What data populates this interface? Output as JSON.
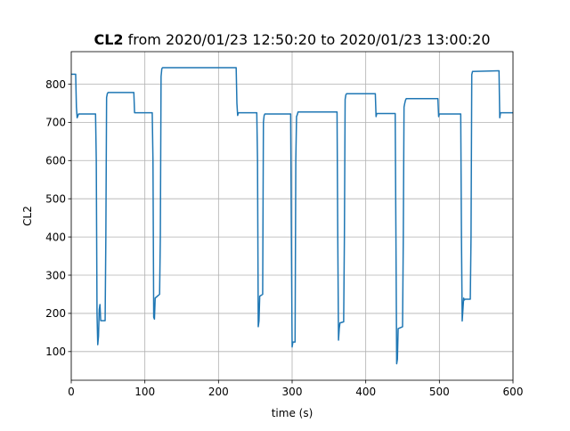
{
  "chart_data": {
    "type": "line",
    "title_bold": "CL2",
    "title_rest": " from 2020/01/23 12:50:20 to 2020/01/23 13:00:20",
    "xlabel": "time (s)",
    "ylabel": "CL2",
    "xlim": [
      0,
      600
    ],
    "ylim": [
      25,
      885
    ],
    "xticks": [
      0,
      100,
      200,
      300,
      400,
      500,
      600
    ],
    "yticks": [
      100,
      200,
      300,
      400,
      500,
      600,
      700,
      800
    ],
    "grid": true,
    "line_color": "#1f77b4",
    "series": [
      {
        "x": [
          0,
          6,
          7,
          8,
          10,
          33,
          34,
          35,
          36,
          37,
          38,
          39,
          40,
          46,
          47,
          48,
          49,
          50,
          85,
          86,
          110,
          111,
          112,
          113,
          114,
          120,
          121,
          122,
          123,
          124,
          224,
          225,
          226,
          227,
          252,
          253,
          254,
          255,
          256,
          260,
          261,
          262,
          263,
          298,
          299,
          300,
          301,
          304,
          305,
          306,
          307,
          308,
          361,
          362,
          363,
          364,
          365,
          370,
          371,
          372,
          373,
          374,
          413,
          414,
          415,
          416,
          440,
          441,
          442,
          443,
          444,
          450,
          451,
          452,
          453,
          454,
          455,
          498,
          499,
          500,
          501,
          529,
          530,
          531,
          532,
          533,
          534,
          535,
          542,
          543,
          544,
          545,
          580,
          581,
          582,
          583,
          600
        ],
        "y": [
          826,
          826,
          740,
          712,
          722,
          722,
          600,
          200,
          118,
          140,
          210,
          223,
          181,
          181,
          400,
          765,
          775,
          778,
          778,
          725,
          725,
          600,
          190,
          185,
          240,
          250,
          400,
          820,
          840,
          843,
          843,
          750,
          718,
          725,
          725,
          600,
          165,
          180,
          245,
          250,
          700,
          718,
          722,
          722,
          400,
          112,
          125,
          125,
          600,
          715,
          720,
          727,
          727,
          400,
          130,
          160,
          175,
          178,
          400,
          760,
          772,
          775,
          775,
          715,
          723,
          723,
          723,
          400,
          68,
          80,
          160,
          165,
          400,
          740,
          750,
          758,
          762,
          762,
          715,
          722,
          722,
          722,
          400,
          180,
          210,
          240,
          235,
          237,
          237,
          400,
          825,
          833,
          835,
          835,
          712,
          725,
          725
        ]
      }
    ]
  }
}
